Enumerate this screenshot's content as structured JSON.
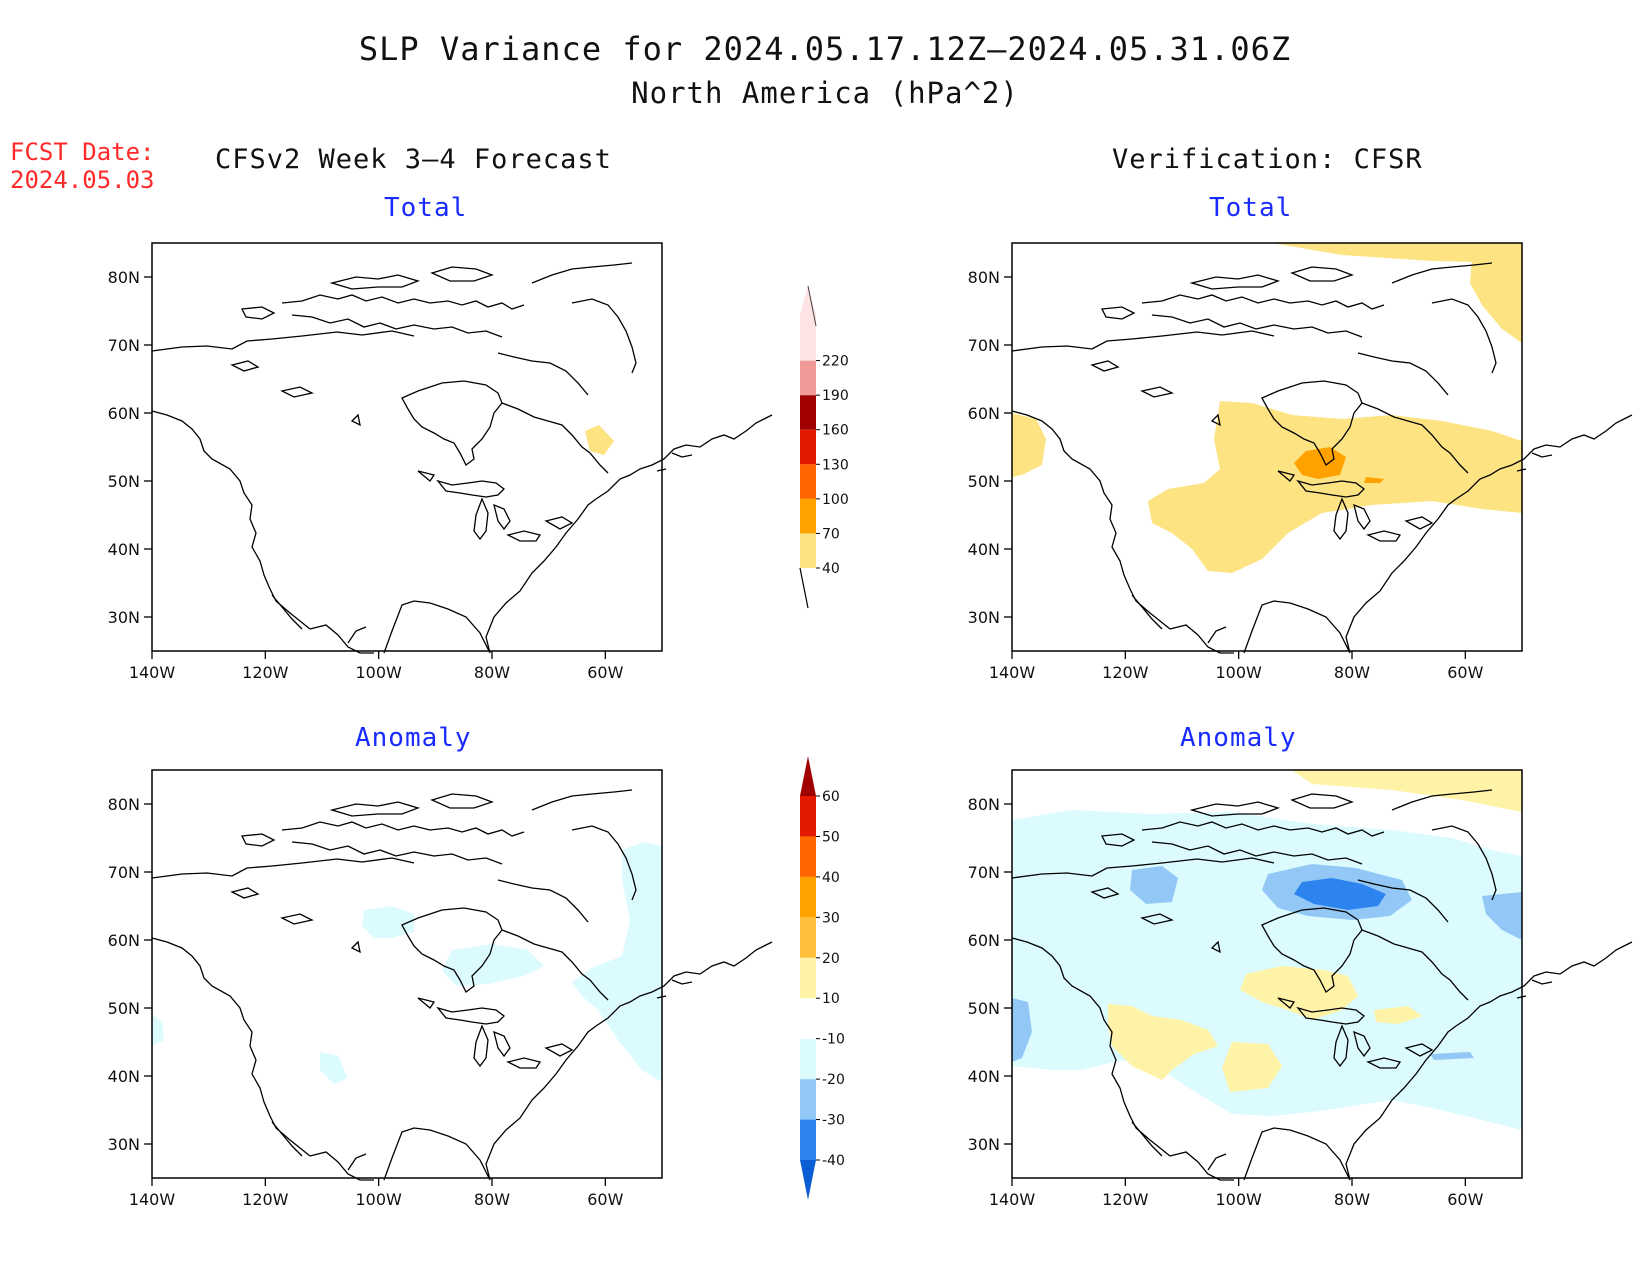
{
  "figure": {
    "title_line1": "SLP Variance for 2024.05.17.12Z—2024.05.31.06Z",
    "title_line2": "North America (hPa^2)",
    "fcst_date_label": "FCST Date:",
    "fcst_date_value": "2024.05.03",
    "left_column_title": "CFSv2 Week 3—4 Forecast",
    "right_column_title": "Verification: CFSR"
  },
  "panels": {
    "forecast_total": {
      "label": "Total"
    },
    "verification_total": {
      "label": "Total"
    },
    "forecast_anomaly": {
      "label": "Anomaly"
    },
    "verification_anomaly": {
      "label": "Anomaly"
    }
  },
  "axes": {
    "lon_ticks": [
      "140W",
      "120W",
      "100W",
      "80W",
      "60W"
    ],
    "lat_ticks": [
      "80N",
      "70N",
      "60N",
      "50N",
      "40N",
      "30N"
    ],
    "lon_range": [
      -140,
      -50
    ],
    "lat_range": [
      25,
      85
    ]
  },
  "total_colorbar": {
    "labels": [
      "40",
      "70",
      "100",
      "130",
      "160",
      "190",
      "220"
    ],
    "colors": [
      "#fde382",
      "#ffa200",
      "#ff6600",
      "#e41a00",
      "#a10000",
      "#f19a9a",
      "#fde3e3"
    ]
  },
  "anomaly_colorbar": {
    "labels": [
      "-40",
      "-30",
      "-20",
      "-10",
      "10",
      "20",
      "30",
      "40",
      "50",
      "60"
    ],
    "colors": [
      "#0a5fd6",
      "#2d84ee",
      "#93c8f6",
      "#dbfbff",
      "#ffffff",
      "#fef3a6",
      "#ffc13b",
      "#ffa200",
      "#ff6600",
      "#e41a00",
      "#a10000"
    ]
  }
}
